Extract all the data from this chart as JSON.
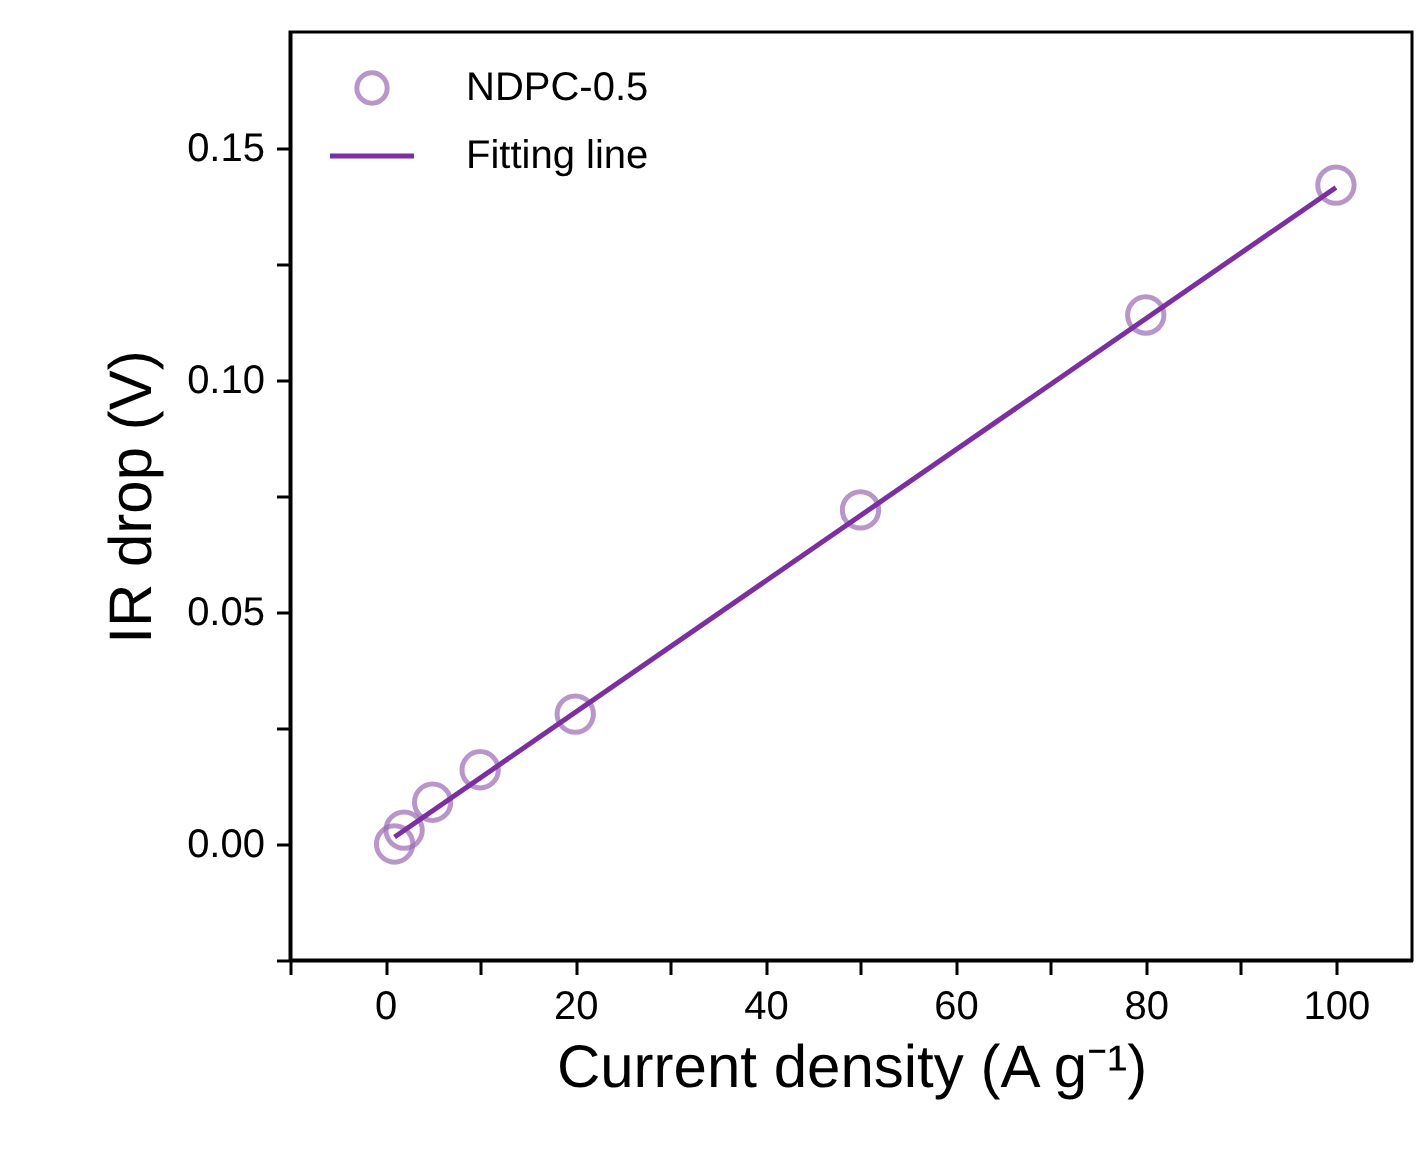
{
  "chart_data": {
    "type": "scatter",
    "xlabel": "Current density (A g⁻¹)",
    "ylabel": "IR drop (V)",
    "xlim": [
      -10,
      108
    ],
    "ylim": [
      -0.025,
      0.175
    ],
    "xticks": [
      {
        "value": -10,
        "label": null
      },
      0,
      {
        "value": 10,
        "label": null
      },
      20,
      {
        "value": 30,
        "label": null
      },
      40,
      {
        "value": 50,
        "label": null
      },
      60,
      {
        "value": 70,
        "label": null
      },
      80,
      {
        "value": 90,
        "label": null
      },
      100
    ],
    "yticks": [
      {
        "value": -0.025,
        "label": null
      },
      {
        "value": 0,
        "label": "0.00"
      },
      {
        "value": 0.025,
        "label": null
      },
      {
        "value": 0.05,
        "label": "0.05"
      },
      {
        "value": 0.075,
        "label": null
      },
      {
        "value": 0.1,
        "label": "0.10"
      },
      {
        "value": 0.125,
        "label": null
      },
      {
        "value": 0.15,
        "label": "0.15"
      }
    ],
    "grid": false,
    "legend": "top left",
    "series": [
      {
        "name": "NDPC-0.5",
        "type": "scatter",
        "marker": "circle",
        "color": "#9b6bb5",
        "x": [
          1,
          2,
          5,
          10,
          20,
          50,
          80,
          100
        ],
        "values": [
          0.0,
          0.003,
          0.009,
          0.016,
          0.028,
          0.072,
          0.114,
          0.142
        ]
      },
      {
        "name": "Fitting line",
        "type": "line",
        "line_style": "solid",
        "color": "#7b2fa0",
        "x": [
          1,
          100
        ],
        "values": [
          0.0015,
          0.1415
        ]
      }
    ]
  }
}
